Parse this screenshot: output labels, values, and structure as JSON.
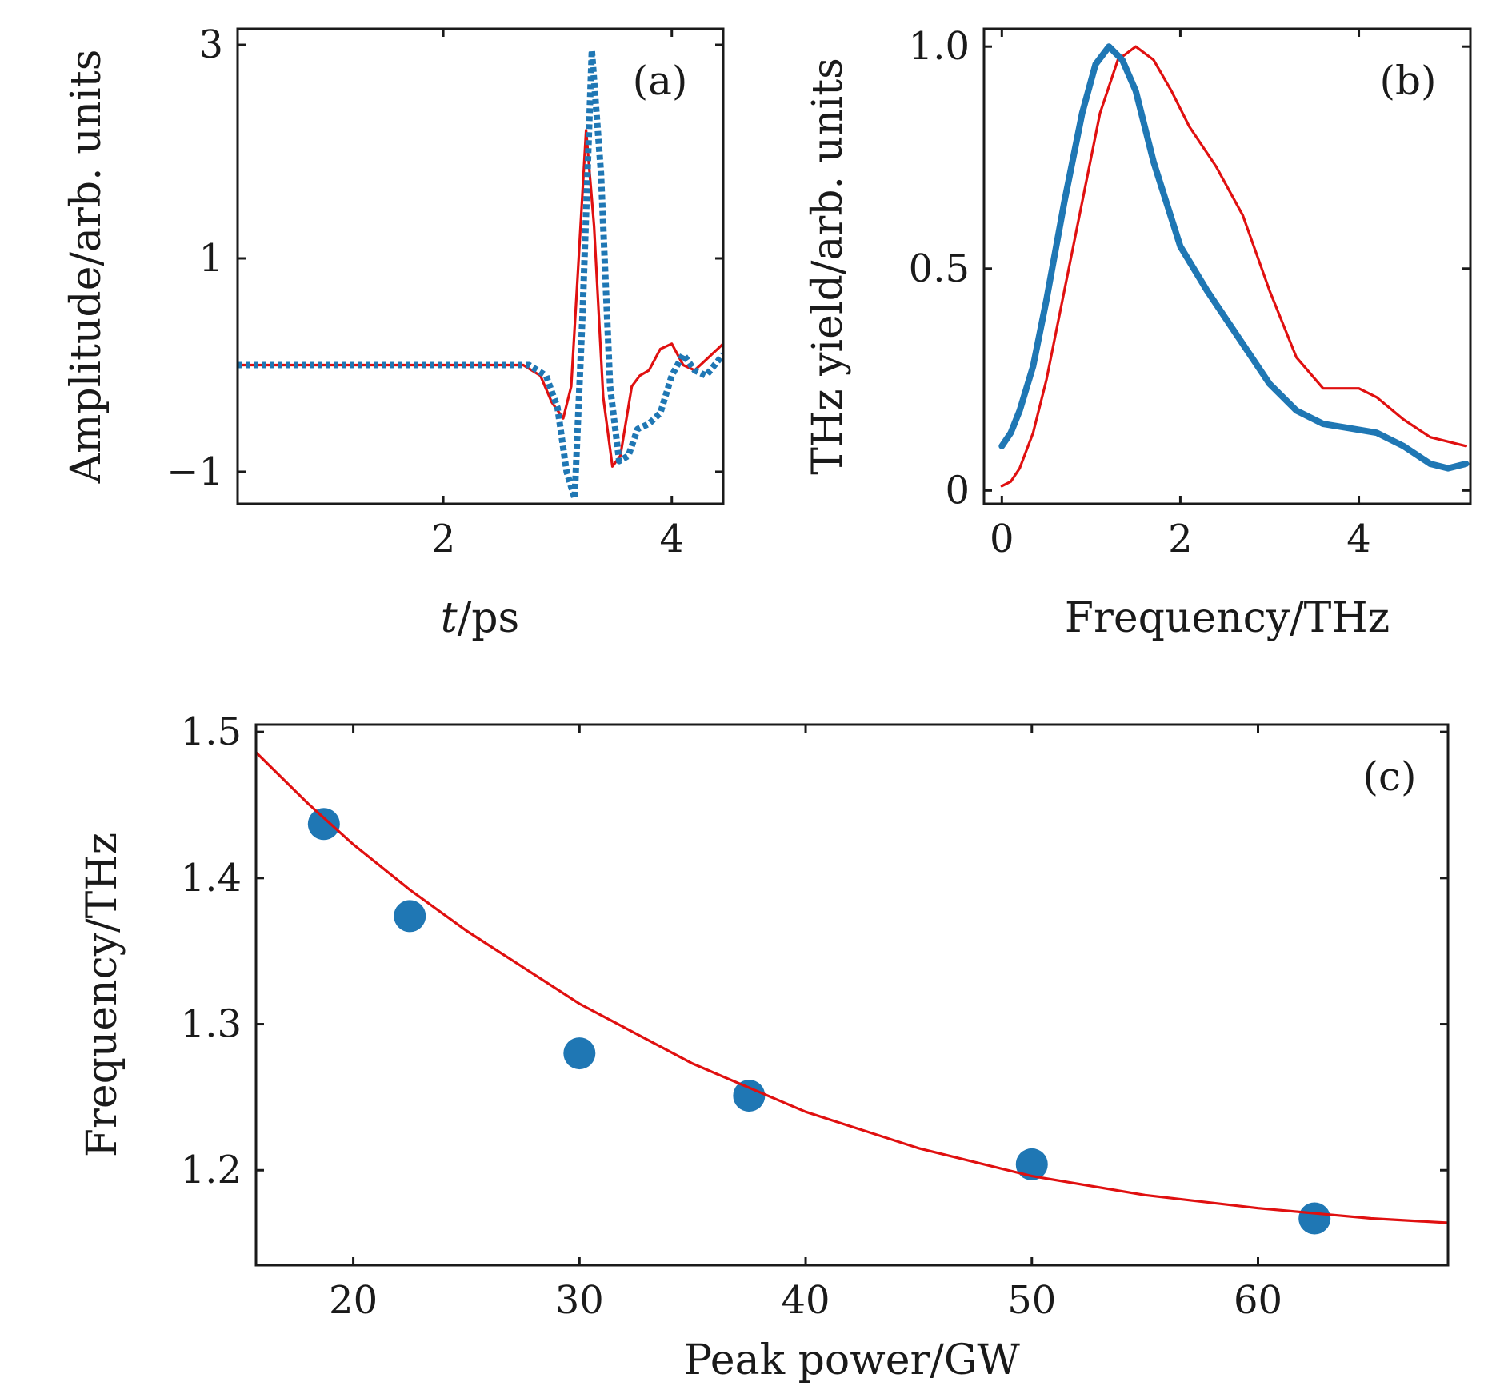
{
  "colors": {
    "red": "#e01010",
    "blue": "#1f77b4",
    "axis": "#1a1a1a"
  },
  "chart_data": [
    {
      "type": "line",
      "panel_label": "(a)",
      "xlabel": "t/ps",
      "xlabel_italic_part": "t",
      "xlabel_rest": "/ps",
      "ylabel": "Amplitude/arb. units",
      "xlim": [
        0.2,
        4.45
      ],
      "ylim": [
        -1.3,
        3.15
      ],
      "xticks": [
        2,
        4
      ],
      "xtick_labels": [
        "2",
        "4"
      ],
      "yticks": [
        -1,
        1,
        3
      ],
      "ytick_labels": [
        "−1",
        "1",
        "3"
      ],
      "grid": false,
      "series": [
        {
          "color": "#e01010",
          "style": "solid",
          "width": "thin",
          "x": [
            0.2,
            1.0,
            2.0,
            2.7,
            2.85,
            2.95,
            3.05,
            3.12,
            3.18,
            3.25,
            3.32,
            3.4,
            3.48,
            3.55,
            3.65,
            3.72,
            3.8,
            3.9,
            4.0,
            4.1,
            4.2,
            4.3,
            4.45
          ],
          "y": [
            0.0,
            0.0,
            0.0,
            0.0,
            -0.1,
            -0.35,
            -0.5,
            -0.2,
            0.9,
            2.2,
            1.3,
            -0.3,
            -0.95,
            -0.85,
            -0.2,
            -0.1,
            -0.05,
            0.15,
            0.2,
            0.0,
            -0.05,
            0.05,
            0.2
          ]
        },
        {
          "color": "#1f77b4",
          "style": "dotted",
          "width": "thick",
          "x": [
            0.2,
            1.0,
            2.0,
            2.75,
            2.9,
            3.0,
            3.08,
            3.15,
            3.22,
            3.3,
            3.38,
            3.46,
            3.54,
            3.62,
            3.7,
            3.8,
            3.9,
            4.0,
            4.1,
            4.2,
            4.3,
            4.45
          ],
          "y": [
            0.0,
            0.0,
            0.0,
            0.0,
            -0.1,
            -0.4,
            -1.0,
            -1.25,
            0.5,
            2.95,
            1.8,
            -0.2,
            -0.9,
            -0.85,
            -0.6,
            -0.55,
            -0.45,
            -0.1,
            0.1,
            -0.05,
            -0.1,
            0.1
          ]
        }
      ]
    },
    {
      "type": "line",
      "panel_label": "(b)",
      "xlabel": "Frequency/THz",
      "ylabel": "THz yield/arb. units",
      "xlim": [
        -0.2,
        5.25
      ],
      "ylim": [
        -0.03,
        1.04
      ],
      "xticks": [
        0,
        2,
        4
      ],
      "xtick_labels": [
        "0",
        "2",
        "4"
      ],
      "yticks": [
        0,
        0.5,
        1.0
      ],
      "ytick_labels": [
        "0",
        "0.5",
        "1.0"
      ],
      "grid": false,
      "series": [
        {
          "color": "#e01010",
          "style": "solid",
          "width": "thin",
          "x": [
            0.0,
            0.1,
            0.2,
            0.35,
            0.5,
            0.7,
            0.9,
            1.1,
            1.3,
            1.5,
            1.7,
            1.9,
            2.1,
            2.4,
            2.7,
            3.0,
            3.3,
            3.6,
            3.8,
            4.0,
            4.2,
            4.5,
            4.8,
            5.2
          ],
          "y": [
            0.01,
            0.02,
            0.05,
            0.13,
            0.25,
            0.45,
            0.65,
            0.85,
            0.97,
            1.0,
            0.97,
            0.9,
            0.82,
            0.73,
            0.62,
            0.45,
            0.3,
            0.23,
            0.23,
            0.23,
            0.21,
            0.16,
            0.12,
            0.1
          ]
        },
        {
          "color": "#1f77b4",
          "style": "solid",
          "width": "thick",
          "x": [
            0.0,
            0.1,
            0.2,
            0.35,
            0.5,
            0.7,
            0.9,
            1.05,
            1.2,
            1.35,
            1.5,
            1.7,
            2.0,
            2.3,
            2.6,
            3.0,
            3.3,
            3.6,
            3.9,
            4.2,
            4.5,
            4.8,
            5.0,
            5.2
          ],
          "y": [
            0.1,
            0.13,
            0.18,
            0.28,
            0.43,
            0.65,
            0.85,
            0.96,
            1.0,
            0.97,
            0.9,
            0.74,
            0.55,
            0.45,
            0.36,
            0.24,
            0.18,
            0.15,
            0.14,
            0.13,
            0.1,
            0.06,
            0.05,
            0.06
          ]
        }
      ]
    },
    {
      "type": "scatter",
      "panel_label": "(c)",
      "xlabel": "Peak power/GW",
      "ylabel": "Frequency/THz",
      "xlim": [
        15.7,
        68.4
      ],
      "ylim": [
        1.135,
        1.505
      ],
      "xticks": [
        20,
        30,
        40,
        50,
        60
      ],
      "xtick_labels": [
        "20",
        "30",
        "40",
        "50",
        "60"
      ],
      "yticks": [
        1.2,
        1.3,
        1.4,
        1.5
      ],
      "ytick_labels": [
        "1.2",
        "1.3",
        "1.4",
        "1.5"
      ],
      "grid": false,
      "series": [
        {
          "kind": "points",
          "color": "#1f77b4",
          "x": [
            18.7,
            22.5,
            30.0,
            37.5,
            50.0,
            62.5
          ],
          "y": [
            1.437,
            1.374,
            1.28,
            1.251,
            1.204,
            1.167
          ]
        },
        {
          "kind": "fit",
          "color": "#e01010",
          "style": "solid",
          "x": [
            15.7,
            18,
            20,
            22.5,
            25,
            30,
            35,
            40,
            45,
            50,
            55,
            60,
            65,
            68.4
          ],
          "y": [
            1.486,
            1.451,
            1.423,
            1.392,
            1.364,
            1.314,
            1.273,
            1.24,
            1.215,
            1.196,
            1.183,
            1.174,
            1.167,
            1.164
          ]
        }
      ]
    }
  ]
}
